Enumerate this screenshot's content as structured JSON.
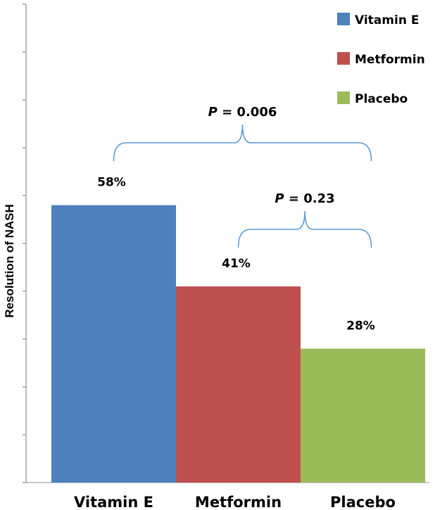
{
  "chart_data": {
    "type": "bar",
    "categories": [
      "Vitamin E",
      "Metformin",
      "Placebo"
    ],
    "values": [
      58,
      41,
      28
    ],
    "data_labels": [
      "58%",
      "41%",
      "28%"
    ],
    "colors": [
      "#4f81bd",
      "#c0504d",
      "#9bbb59"
    ],
    "title": "",
    "xlabel": "",
    "ylabel": "Resolution of NASH",
    "ylim": [
      0,
      100
    ],
    "grid": false,
    "legend": {
      "position": "top-right",
      "entries": [
        "Vitamin E",
        "Metformin",
        "Placebo"
      ]
    },
    "annotations": [
      {
        "p_label": "P",
        "p_rest": " = 0.006",
        "from": "Vitamin E",
        "to": "Placebo",
        "color": "#5b9bd5"
      },
      {
        "p_label": "P",
        "p_rest": " = 0.23",
        "from": "Metformin",
        "to": "Placebo",
        "color": "#5b9bd5"
      }
    ]
  }
}
